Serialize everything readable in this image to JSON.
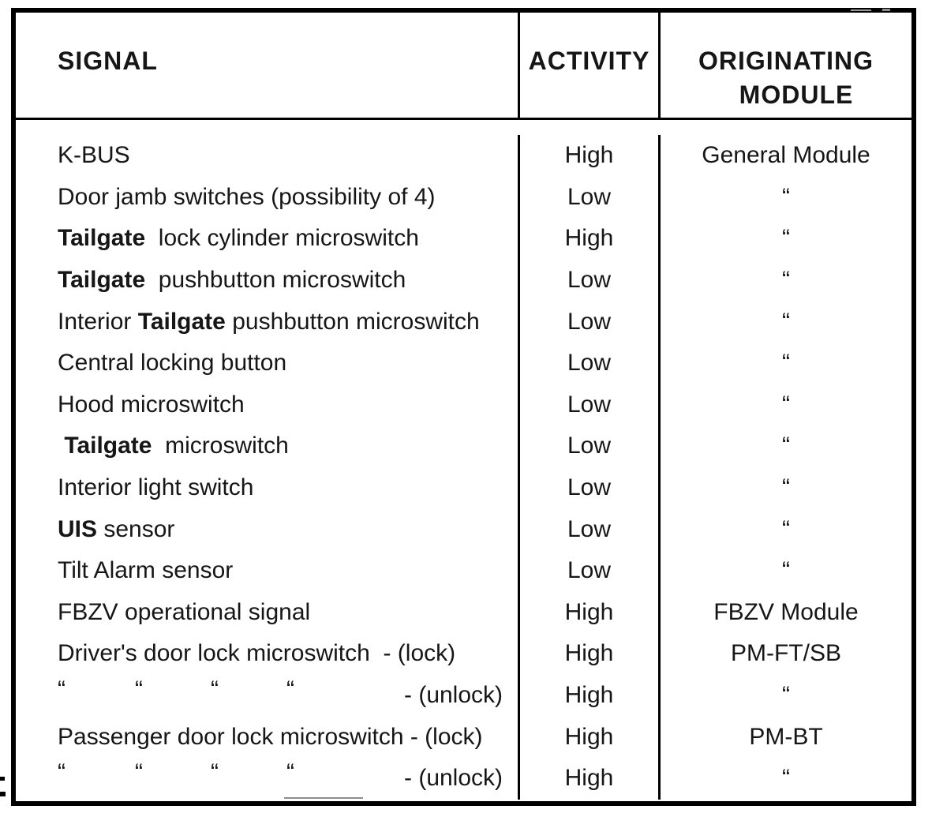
{
  "colors": {
    "ink": "#161616",
    "border": "#000000",
    "background": "#ffffff"
  },
  "table": {
    "headers": {
      "signal": "SIGNAL",
      "activity": "ACTIVITY",
      "module_line1": "ORIGINATING",
      "module_line2": "MODULE"
    },
    "rows": [
      {
        "signal": [
          {
            "t": "K-BUS"
          }
        ],
        "activity": "High",
        "module": "General Module"
      },
      {
        "signal": [
          {
            "t": "Door jamb switches (possibility of 4)"
          }
        ],
        "activity": "Low",
        "module": "“"
      },
      {
        "signal": [
          {
            "t": "Tailgate",
            "b": true
          },
          {
            "t": "  lock cylinder microswitch"
          }
        ],
        "activity": "High",
        "module": "“"
      },
      {
        "signal": [
          {
            "t": "Tailgate",
            "b": true
          },
          {
            "t": "  pushbutton microswitch"
          }
        ],
        "activity": "Low",
        "module": "“"
      },
      {
        "signal": [
          {
            "t": "Interior "
          },
          {
            "t": "Tailgate",
            "b": true
          },
          {
            "t": " pushbutton microswitch"
          }
        ],
        "activity": "Low",
        "module": "“"
      },
      {
        "signal": [
          {
            "t": "Central locking button"
          }
        ],
        "activity": "Low",
        "module": "“"
      },
      {
        "signal": [
          {
            "t": "Hood microswitch"
          }
        ],
        "activity": "Low",
        "module": "“"
      },
      {
        "signal": [
          {
            "t": " "
          },
          {
            "t": "Tailgate",
            "b": true
          },
          {
            "t": "  microswitch"
          }
        ],
        "activity": "Low",
        "module": "“"
      },
      {
        "signal": [
          {
            "t": "Interior light switch"
          }
        ],
        "activity": "Low",
        "module": "“"
      },
      {
        "signal": [
          {
            "t": "UIS",
            "b": true
          },
          {
            "t": " sensor"
          }
        ],
        "activity": "Low",
        "module": "“"
      },
      {
        "signal": [
          {
            "t": "Tilt Alarm sensor"
          }
        ],
        "activity": "Low",
        "module": "“"
      },
      {
        "signal": [
          {
            "t": "FBZV operational signal"
          }
        ],
        "activity": "High",
        "module": "FBZV Module"
      },
      {
        "signal": [
          {
            "t": "Driver's door lock microswitch  - (lock)"
          }
        ],
        "activity": "High",
        "module": "PM-FT/SB"
      },
      {
        "signal_dittos": [
          "“",
          "“",
          "“",
          "“"
        ],
        "signal_suffix": "- (unlock)",
        "activity": "High",
        "module": "“"
      },
      {
        "signal": [
          {
            "t": "Passenger door lock microswitch - (lock)"
          }
        ],
        "activity": "High",
        "module": "PM-BT"
      },
      {
        "signal_dittos": [
          "“",
          "“",
          "“",
          "“"
        ],
        "signal_suffix": "- (unlock)",
        "activity": "High",
        "module": "“"
      }
    ]
  }
}
